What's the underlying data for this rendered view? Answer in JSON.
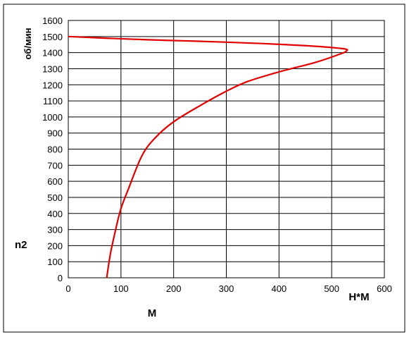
{
  "chart_data": {
    "type": "line",
    "title": "",
    "xlabel": "М",
    "ylabel": "n2",
    "x_unit": "Н*М",
    "y_unit": "об/мин",
    "xlim": [
      0,
      600
    ],
    "ylim": [
      0,
      1600
    ],
    "x_ticks": [
      0,
      100,
      200,
      300,
      400,
      500,
      600
    ],
    "y_ticks": [
      0,
      100,
      200,
      300,
      400,
      500,
      600,
      700,
      800,
      900,
      1000,
      1100,
      1200,
      1300,
      1400,
      1500,
      1600
    ],
    "grid": true,
    "legend": "none",
    "series": [
      {
        "color": "#e00000",
        "x": [
          73,
          80,
          90,
          100,
          115,
          140,
          165,
          200,
          250,
          300,
          340,
          400,
          470,
          515,
          528,
          520,
          440,
          300,
          150,
          70,
          0
        ],
        "y": [
          0,
          150,
          300,
          430,
          560,
          760,
          870,
          970,
          1070,
          1160,
          1220,
          1280,
          1340,
          1390,
          1410,
          1425,
          1445,
          1465,
          1480,
          1490,
          1500
        ]
      }
    ]
  }
}
